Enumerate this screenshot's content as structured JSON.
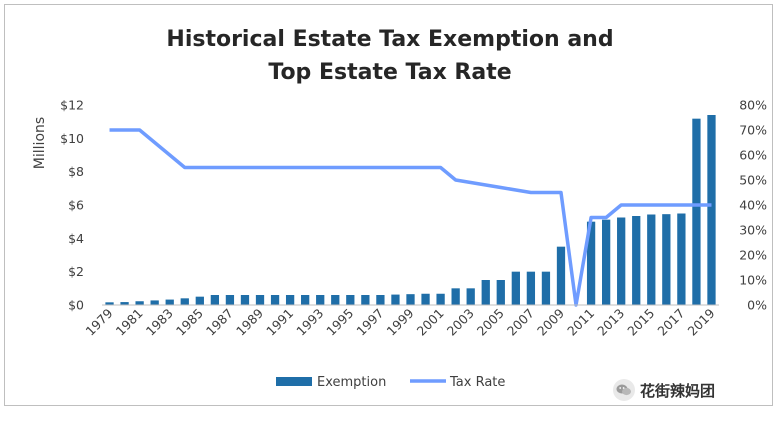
{
  "chart_data": {
    "type": "bar+line",
    "title_lines": [
      "Historical Estate Tax Exemption and",
      "Top Estate Tax Rate"
    ],
    "ylabel_left": "Millions",
    "left_ticks": [
      "$0",
      "$2",
      "$4",
      "$6",
      "$8",
      "$10",
      "$12"
    ],
    "right_ticks": [
      "0%",
      "10%",
      "20%",
      "30%",
      "40%",
      "50%",
      "60%",
      "70%",
      "80%"
    ],
    "ylim_left": [
      0,
      12
    ],
    "ylim_right": [
      0,
      80
    ],
    "years": [
      1979,
      1980,
      1981,
      1982,
      1983,
      1984,
      1985,
      1986,
      1987,
      1988,
      1989,
      1990,
      1991,
      1992,
      1993,
      1994,
      1995,
      1996,
      1997,
      1998,
      1999,
      2000,
      2001,
      2002,
      2003,
      2004,
      2005,
      2006,
      2007,
      2008,
      2009,
      2010,
      2011,
      2012,
      2013,
      2014,
      2015,
      2016,
      2017,
      2018,
      2019
    ],
    "x_tick_labels": [
      "1979",
      "1981",
      "1983",
      "1985",
      "1987",
      "1989",
      "1991",
      "1993",
      "1995",
      "1997",
      "1999",
      "2001",
      "2003",
      "2005",
      "2007",
      "2009",
      "2011",
      "2013",
      "2015",
      "2017",
      "2019"
    ],
    "series": [
      {
        "name": "Exemption",
        "type": "bar",
        "axis": "left",
        "color": "#1f6ea8",
        "values": [
          0.16,
          0.175,
          0.225,
          0.275,
          0.325,
          0.4,
          0.5,
          0.6,
          0.6,
          0.6,
          0.6,
          0.6,
          0.6,
          0.6,
          0.6,
          0.6,
          0.6,
          0.6,
          0.6,
          0.625,
          0.65,
          0.675,
          0.675,
          1.0,
          1.0,
          1.5,
          1.5,
          2.0,
          2.0,
          2.0,
          3.5,
          0,
          5.0,
          5.12,
          5.25,
          5.34,
          5.43,
          5.45,
          5.49,
          11.18,
          11.4
        ]
      },
      {
        "name": "Tax Rate",
        "type": "line",
        "axis": "right",
        "color": "#6f9cff",
        "values": [
          70,
          70,
          70,
          65,
          60,
          55,
          55,
          55,
          55,
          55,
          55,
          55,
          55,
          55,
          55,
          55,
          55,
          55,
          55,
          55,
          55,
          55,
          55,
          50,
          49,
          48,
          47,
          46,
          45,
          45,
          45,
          0,
          35,
          35,
          40,
          40,
          40,
          40,
          40,
          40,
          40
        ]
      }
    ],
    "legend": [
      "Exemption",
      "Tax Rate"
    ],
    "legend_position": "bottom",
    "grid": false
  },
  "watermark": {
    "text": "花街辣妈团",
    "icon": "wechat-icon"
  }
}
